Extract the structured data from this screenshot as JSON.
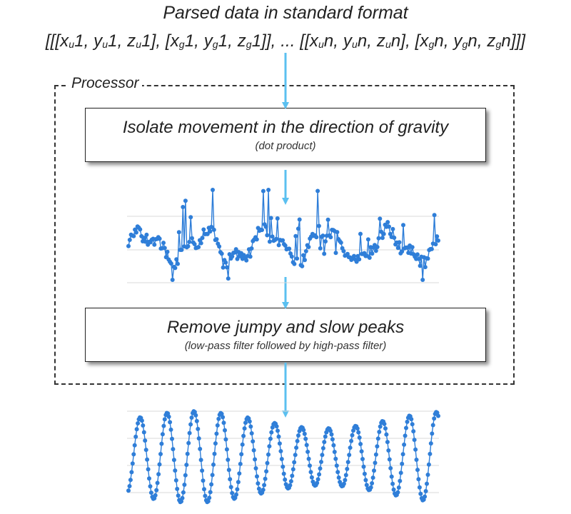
{
  "header": {
    "title": "Parsed data in standard format"
  },
  "format": {
    "open": "[[[",
    "x": "x",
    "y": "y",
    "z": "z",
    "u": "u",
    "g": "g",
    "one": "1",
    "n": "n",
    "comma": ", ",
    "sep": "], [",
    "close_pair": "]], ",
    "ellipsis": "... ",
    "open_pair": "[[",
    "close": "]]]"
  },
  "processor": {
    "label": "Processor"
  },
  "steps": [
    {
      "title": "Isolate movement in the direction of gravity",
      "subtitle": "(dot product)"
    },
    {
      "title": "Remove jumpy and slow peaks",
      "subtitle": "(low-pass filter followed by high-pass filter)"
    }
  ],
  "colors": {
    "arrow": "#5bc0f0",
    "series": "#2f7ed8",
    "grid": "#d8d8d8",
    "frame": "#333333"
  }
}
